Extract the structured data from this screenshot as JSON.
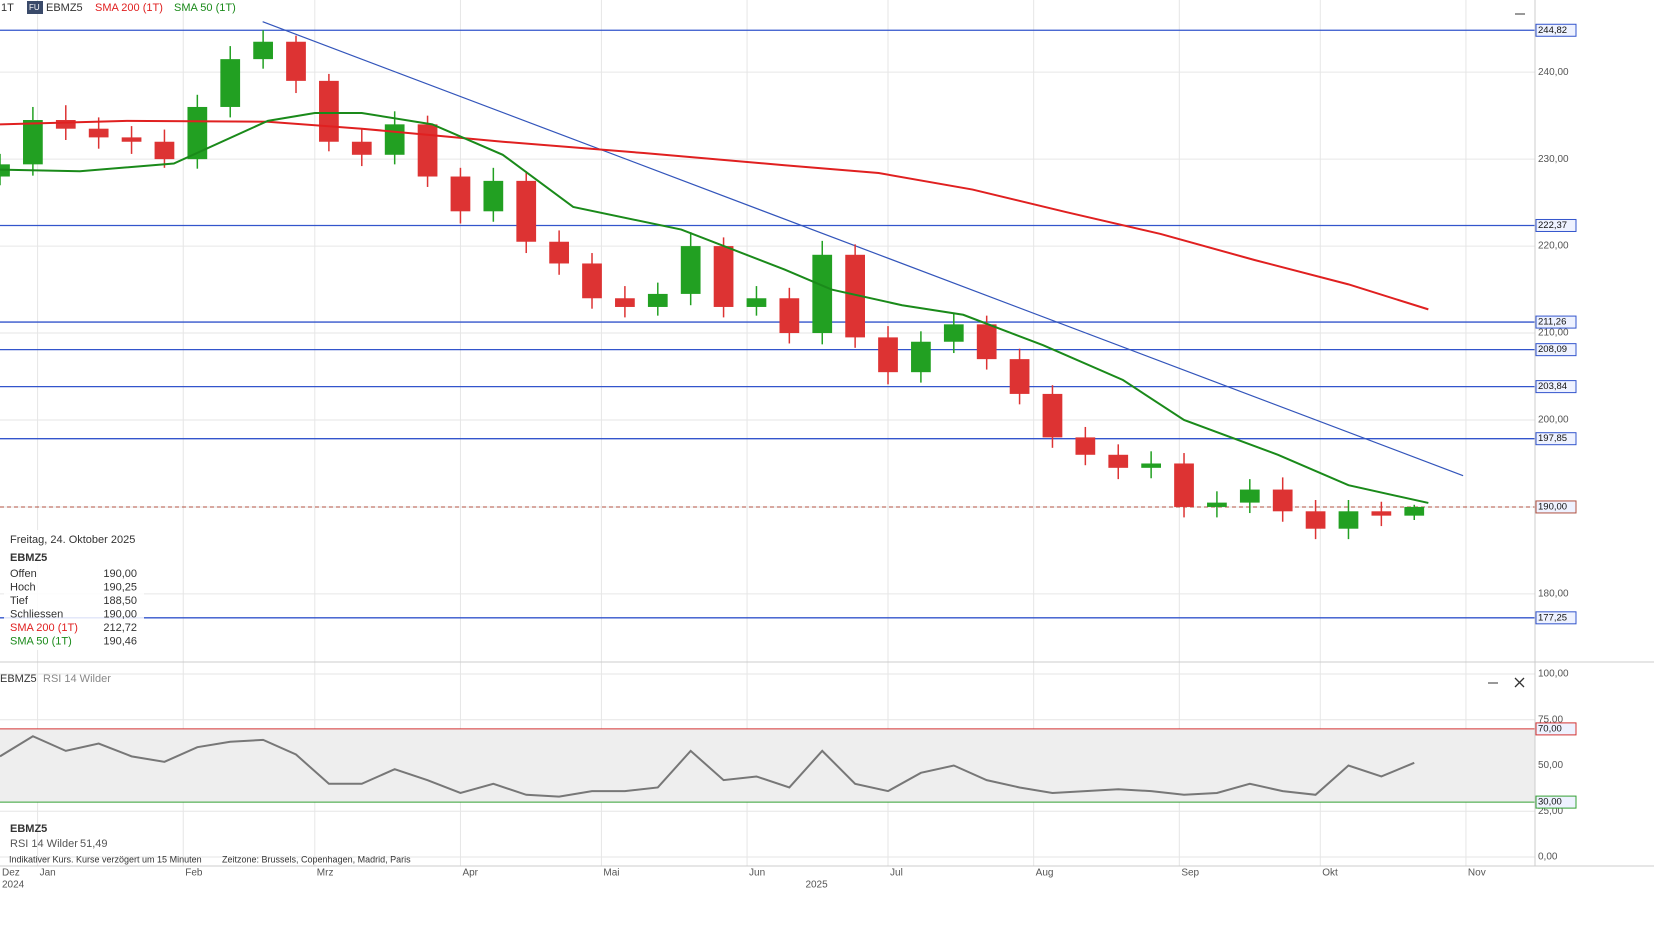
{
  "header": {
    "interval": "1T",
    "badge": "FU",
    "symbol": "EBMZ5"
  },
  "info": {
    "date": "Freitag, 24. Oktober 2025",
    "symbol": "EBMZ5",
    "rows": [
      [
        "Offen",
        "190,00"
      ],
      [
        "Hoch",
        "190,25"
      ],
      [
        "Tief",
        "188,50"
      ],
      [
        "Schliessen",
        "190,00"
      ],
      [
        "SMA 200 (1T)",
        "212,72"
      ],
      [
        "SMA 50 (1T)",
        "190,46"
      ]
    ]
  },
  "footer": {
    "note": "Indikativer Kurs. Kurse verzögert um 15 Minuten",
    "timezone": "Zeitzone: Brussels, Copenhagen, Madrid, Paris"
  },
  "chart_data": [
    {
      "type": "candlestick",
      "name": "EBMZ5",
      "x": [
        23,
        30,
        37,
        44,
        51,
        58,
        65,
        72,
        79,
        86,
        93,
        100,
        107,
        114,
        121,
        128,
        135,
        142,
        149,
        156,
        163,
        170,
        177,
        184,
        191,
        198,
        205,
        212,
        219,
        226,
        233,
        240,
        247,
        254,
        261,
        268,
        275,
        282,
        289,
        296,
        303,
        310,
        317,
        324
      ],
      "open": [
        228,
        229.4,
        234.5,
        233.5,
        232.5,
        232,
        230,
        236,
        241.5,
        243.5,
        239,
        232,
        230.5,
        234,
        228,
        224,
        227.5,
        220.5,
        218,
        214,
        213,
        214.5,
        220,
        213,
        214,
        210,
        219,
        209.5,
        205.5,
        209,
        211,
        207,
        203,
        198,
        196,
        194.5,
        195,
        190,
        190.5,
        192,
        189.5,
        187.5,
        189.5,
        189
      ],
      "high": [
        230.6,
        236,
        236.2,
        234.8,
        233.8,
        233.4,
        237.4,
        243,
        244.82,
        244.2,
        239.8,
        233.4,
        235.5,
        235,
        229,
        229,
        228.6,
        221.8,
        219.2,
        215.4,
        215.8,
        221.6,
        221,
        215.4,
        215.2,
        220.6,
        220.2,
        210.8,
        210.2,
        212.2,
        212,
        208.2,
        204,
        199.2,
        197.2,
        196.4,
        196.2,
        191.8,
        193.2,
        193.4,
        190.8,
        190.8,
        190.6,
        190.25
      ],
      "low": [
        227,
        228.1,
        232.2,
        231.2,
        230.6,
        229,
        228.9,
        234.8,
        240.4,
        237.6,
        230.9,
        229.2,
        229.4,
        226.8,
        222.6,
        222.8,
        219.2,
        216.7,
        212.8,
        211.8,
        212,
        213.2,
        211.8,
        212,
        208.8,
        208.7,
        208.3,
        204.1,
        204.3,
        207.7,
        205.8,
        201.8,
        196.8,
        194.8,
        193.2,
        193.3,
        188.8,
        188.8,
        189.3,
        188.3,
        186.3,
        186.3,
        187.8,
        188.5
      ],
      "close": [
        229.4,
        234.5,
        233.5,
        232.5,
        232,
        230,
        236,
        241.5,
        243.5,
        239,
        232,
        230.5,
        234,
        228,
        224,
        227.5,
        220.5,
        218,
        214,
        213,
        214.5,
        220,
        213,
        214,
        210,
        219,
        209.5,
        205.5,
        209,
        211,
        207,
        203,
        198,
        196,
        194.5,
        195,
        190,
        190.5,
        192,
        189.5,
        187.5,
        189.5,
        189,
        190
      ],
      "up_color": "#22a022",
      "down_color": "#dd3333",
      "series": [
        {
          "name": "SMA 200 (1T)",
          "color": "#e02020",
          "x": [
            23,
            50,
            80,
            100,
            130,
            160,
            190,
            210,
            230,
            250,
            270,
            290,
            310,
            327
          ],
          "values": [
            234,
            234.4,
            234.3,
            233.5,
            232,
            230.7,
            229.3,
            228.4,
            226.5,
            223.9,
            221.4,
            218.4,
            215.6,
            212.72
          ]
        },
        {
          "name": "SMA 50 (1T)",
          "color": "#1a8a1a",
          "x": [
            23,
            40,
            60,
            80,
            90,
            100,
            115,
            130,
            145,
            168,
            190,
            200,
            215,
            228,
            245,
            262,
            275,
            295,
            310,
            327
          ],
          "values": [
            228.8,
            228.6,
            229.5,
            234.4,
            235.3,
            235.3,
            234,
            230.5,
            224.5,
            221.9,
            217.3,
            215,
            213.2,
            212.1,
            208.6,
            204.6,
            200,
            196,
            192.5,
            190.46
          ]
        }
      ],
      "trendline": {
        "color": "#3355bb",
        "x": [
          78.9,
          334.4
        ],
        "values": [
          245.8,
          193.6
        ]
      },
      "levels": [
        {
          "value": 244.82,
          "label": "244,82"
        },
        {
          "value": 222.37,
          "label": "222,37"
        },
        {
          "value": 211.26,
          "label": "211,26"
        },
        {
          "value": 208.09,
          "label": "208,09"
        },
        {
          "value": 203.84,
          "label": "203,84"
        },
        {
          "value": 197.85,
          "label": "197,85"
        },
        {
          "value": 177.25,
          "label": "177,25"
        }
      ],
      "level_color": "#3355cc",
      "current": {
        "value": 190,
        "label": "190,00"
      },
      "xlim": [
        23,
        349.7
      ],
      "xticks": [
        {
          "value": 0,
          "label": "Dez"
        },
        {
          "value": 31,
          "label": "Jan"
        },
        {
          "value": 62,
          "label": "Feb"
        },
        {
          "value": 90,
          "label": "Mrz"
        },
        {
          "value": 121,
          "label": "Apr"
        },
        {
          "value": 151,
          "label": "Mai"
        },
        {
          "value": 182,
          "label": "Jun"
        },
        {
          "value": 212,
          "label": "Jul"
        },
        {
          "value": 243,
          "label": "Aug"
        },
        {
          "value": 274,
          "label": "Sep"
        },
        {
          "value": 304,
          "label": "Okt"
        },
        {
          "value": 335,
          "label": "Nov"
        }
      ],
      "year_ticks": [
        {
          "value": 0,
          "label": "2024"
        },
        {
          "value": 194,
          "label": "2025"
        }
      ],
      "ylim": [
        172.4,
        248.3
      ],
      "yticks": [
        {
          "value": 180,
          "label": "180,00"
        },
        {
          "value": 190,
          "label": "190,00"
        },
        {
          "value": 200,
          "label": "200,00"
        },
        {
          "value": 210,
          "label": "210,00"
        },
        {
          "value": 220,
          "label": "220,00"
        },
        {
          "value": 230,
          "label": "230,00"
        },
        {
          "value": 240,
          "label": "240,00"
        }
      ],
      "grid": true
    },
    {
      "type": "line",
      "name": "EBMZ5",
      "title": "RSI 14 Wilder",
      "series": [
        {
          "name": "RSI 14 Wilder",
          "color": "#777777",
          "x": [
            23,
            30,
            37,
            44,
            51,
            58,
            65,
            72,
            79,
            86,
            93,
            100,
            107,
            114,
            121,
            128,
            135,
            142,
            149,
            156,
            163,
            170,
            177,
            184,
            191,
            198,
            205,
            212,
            219,
            226,
            233,
            240,
            247,
            254,
            261,
            268,
            275,
            282,
            289,
            296,
            303,
            310,
            317,
            324
          ],
          "values": [
            55,
            66,
            58,
            62,
            55,
            52,
            60,
            63,
            64,
            56,
            40,
            40,
            48,
            42,
            35,
            40,
            34,
            33,
            36,
            36,
            38,
            58,
            42,
            44,
            38,
            58,
            40,
            36,
            46,
            50,
            42,
            38,
            35,
            36,
            37,
            36,
            34,
            35,
            40,
            36,
            34,
            50,
            44,
            51.49
          ],
          "value_labels": [
            null,
            null,
            null,
            null,
            null,
            null,
            null,
            null,
            null,
            null,
            null,
            null,
            null,
            null,
            null,
            null,
            null,
            null,
            null,
            null,
            null,
            null,
            null,
            null,
            null,
            null,
            null,
            null,
            null,
            null,
            null,
            null,
            null,
            null,
            null,
            null,
            null,
            null,
            null,
            null,
            null,
            null,
            null,
            "51,49"
          ]
        }
      ],
      "levels": [
        {
          "value": 70,
          "label": "70,00",
          "color": "#d33333"
        },
        {
          "value": 30,
          "label": "30,00",
          "color": "#33a033"
        }
      ],
      "ylim": [
        0,
        100
      ],
      "yticks": [
        {
          "value": 0,
          "label": "0,00"
        },
        {
          "value": 25,
          "label": "25,00"
        },
        {
          "value": 50,
          "label": "50,00"
        },
        {
          "value": 75,
          "label": "75,00"
        },
        {
          "value": 100,
          "label": "100,00"
        }
      ],
      "grid": true
    }
  ]
}
